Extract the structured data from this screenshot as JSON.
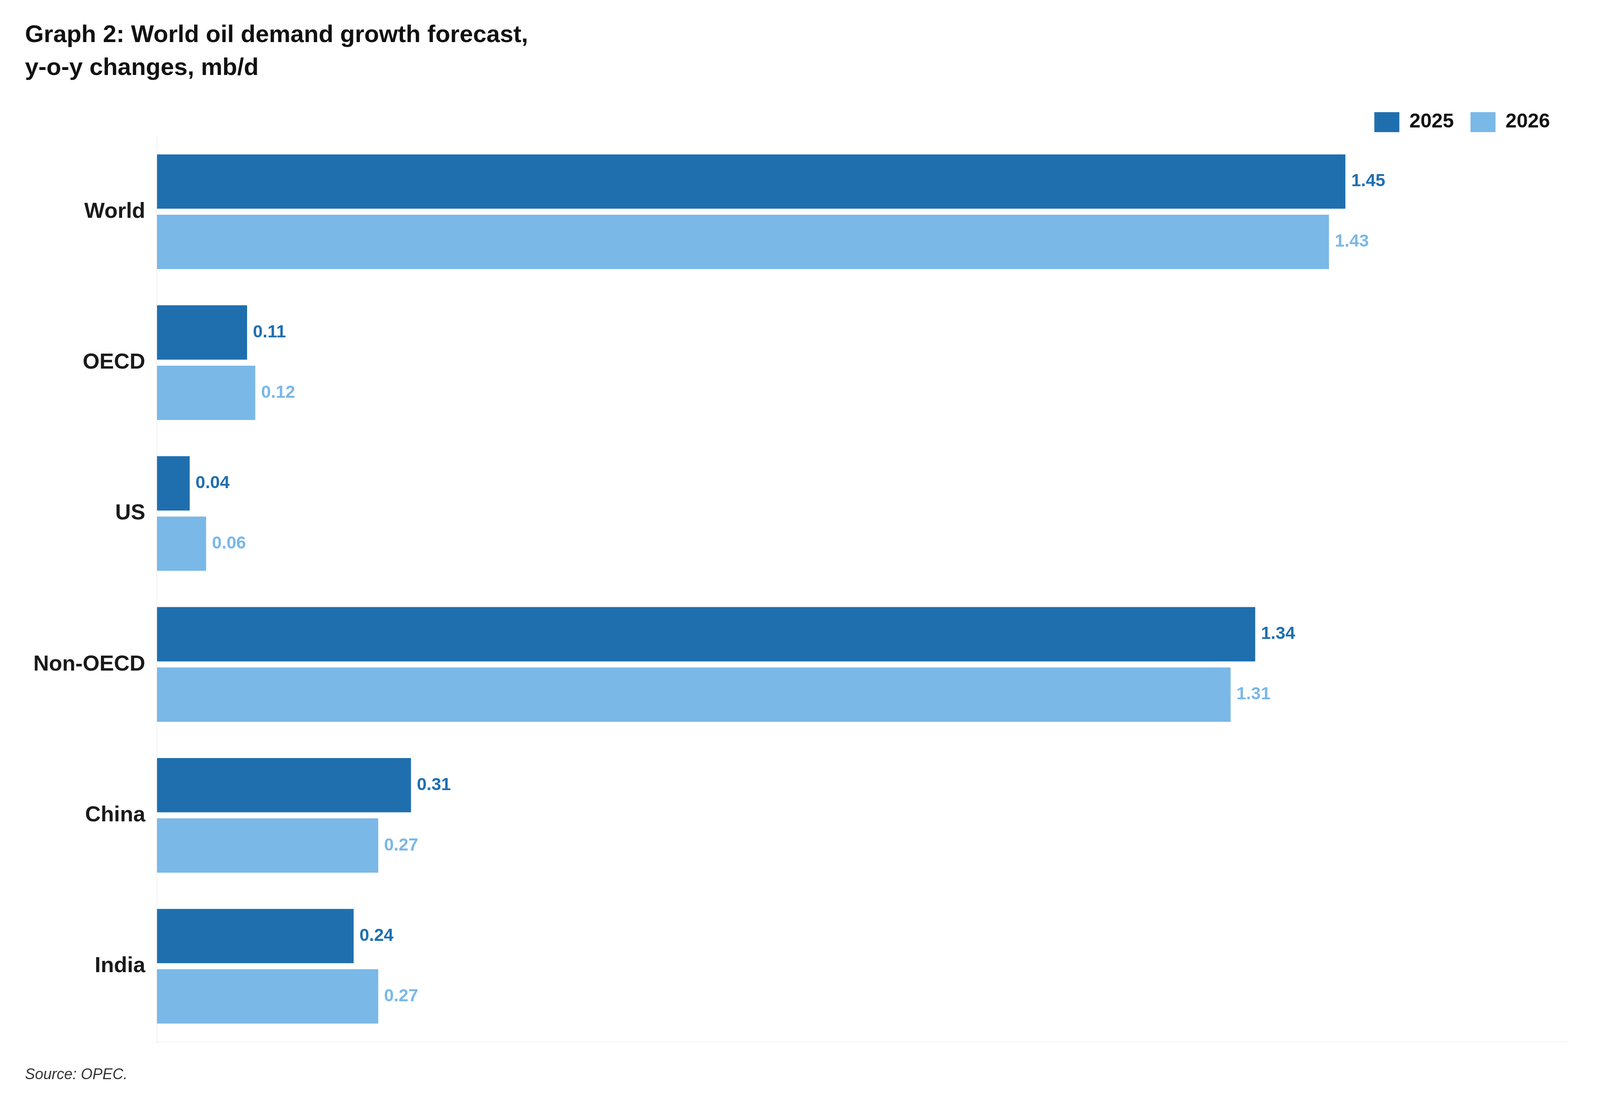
{
  "chart_data": {
    "type": "bar",
    "orientation": "horizontal",
    "title": "Graph 2: World oil demand growth forecast,",
    "subtitle": "y-o-y changes, mb/d",
    "annotations": [
      "Source: OPEC."
    ],
    "categories": [
      "World",
      "OECD",
      "US",
      "Non-OECD",
      "China",
      "India"
    ],
    "series": [
      {
        "name": "2025",
        "color": "#1f6faf",
        "values": [
          1.45,
          0.11,
          0.04,
          1.34,
          0.31,
          0.24
        ]
      },
      {
        "name": "2026",
        "color": "#7ab8e8",
        "values": [
          1.43,
          0.12,
          0.06,
          1.31,
          0.27,
          0.27
        ]
      }
    ],
    "xlim": [
      0,
      1.72
    ],
    "data_labels": true,
    "tick_labels": "y",
    "grid": false,
    "legend": "upper right"
  }
}
